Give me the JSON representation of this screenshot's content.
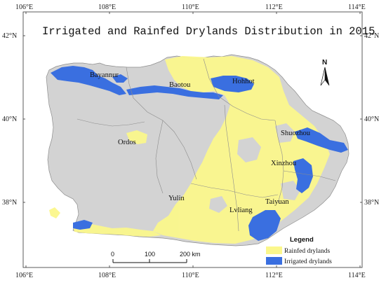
{
  "title": "Irrigated and Rainfed Drylands Distribution in 2015",
  "longitude_ticks": [
    "106°E",
    "108°E",
    "110°E",
    "112°E",
    "114°E"
  ],
  "latitude_ticks": [
    "42°N",
    "40°N",
    "38°N"
  ],
  "cities": [
    "Bayannur",
    "Baotou",
    "Hohhot",
    "Ordos",
    "Shuozhou",
    "Xinzhou",
    "Yulin",
    "Taiyuan",
    "Lvliang"
  ],
  "north_arrow": {
    "label": "N"
  },
  "scale_bar": {
    "labels": [
      "0",
      "100",
      "200 km"
    ]
  },
  "legend": {
    "title": "Legend",
    "items": [
      {
        "label": "Rainfed drylands",
        "color": "#fbf78c"
      },
      {
        "label": "Irrigated drylands",
        "color": "#3a6fe0"
      }
    ]
  },
  "colors": {
    "base": "#d3d3d3",
    "boundary": "#8c8c8c",
    "rainfed": "#fbf78c",
    "irrigated": "#3a6fe0"
  }
}
